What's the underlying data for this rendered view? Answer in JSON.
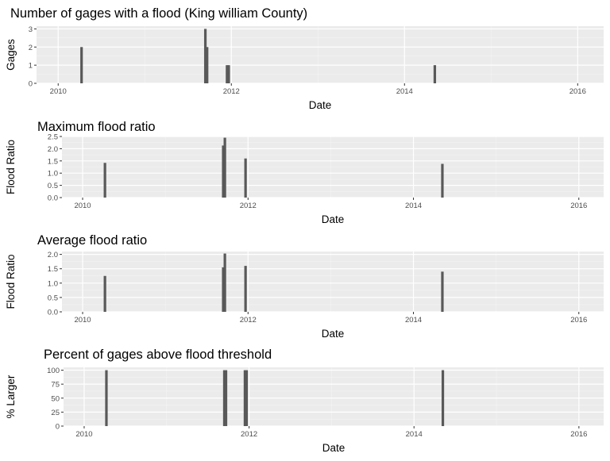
{
  "chart_data": [
    {
      "type": "bar",
      "title": "Number of gages with a flood (King william County)",
      "xlabel": "Date",
      "ylabel": "Gages",
      "xlim": [
        2009.75,
        2016.3
      ],
      "ylim": [
        0,
        3.15
      ],
      "x_ticks": [
        2010,
        2012,
        2014,
        2016
      ],
      "x_tick_labels": [
        "2010",
        "2012",
        "2014",
        "2016"
      ],
      "y_ticks": [
        0,
        1,
        2,
        3
      ],
      "y_tick_labels": [
        "0",
        "1",
        "2",
        "3"
      ],
      "grid": true,
      "bar_color": "#595959",
      "panel_color": "#ebebeb",
      "points": [
        {
          "x": 2010.27,
          "y": 2
        },
        {
          "x": 2011.7,
          "y": 3
        },
        {
          "x": 2011.72,
          "y": 2
        },
        {
          "x": 2011.95,
          "y": 1
        },
        {
          "x": 2011.97,
          "y": 1
        },
        {
          "x": 2014.35,
          "y": 1
        }
      ]
    },
    {
      "type": "bar",
      "title": "Maximum flood ratio",
      "xlabel": "Date",
      "ylabel": "Flood Ratio",
      "xlim": [
        2009.75,
        2016.3
      ],
      "ylim": [
        0,
        2.5
      ],
      "x_ticks": [
        2010,
        2012,
        2014,
        2016
      ],
      "x_tick_labels": [
        "2010",
        "2012",
        "2014",
        "2016"
      ],
      "y_ticks": [
        0,
        0.5,
        1,
        1.5,
        2,
        2.5
      ],
      "y_tick_labels": [
        "0.0",
        "0.5",
        "1.0",
        "1.5",
        "2.0",
        "2.5"
      ],
      "grid": true,
      "bar_color": "#595959",
      "panel_color": "#ebebeb",
      "points": [
        {
          "x": 2010.27,
          "y": 1.42
        },
        {
          "x": 2011.7,
          "y": 2.13
        },
        {
          "x": 2011.72,
          "y": 2.45
        },
        {
          "x": 2011.97,
          "y": 1.6
        },
        {
          "x": 2014.35,
          "y": 1.38
        }
      ]
    },
    {
      "type": "bar",
      "title": "Average flood ratio",
      "xlabel": "Date",
      "ylabel": "Flood Ratio",
      "xlim": [
        2009.75,
        2016.3
      ],
      "ylim": [
        0,
        2.1
      ],
      "x_ticks": [
        2010,
        2012,
        2014,
        2016
      ],
      "x_tick_labels": [
        "2010",
        "2012",
        "2014",
        "2016"
      ],
      "y_ticks": [
        0,
        0.5,
        1,
        1.5,
        2
      ],
      "y_tick_labels": [
        "0.0",
        "0.5",
        "1.0",
        "1.5",
        "2.0"
      ],
      "grid": true,
      "bar_color": "#595959",
      "panel_color": "#ebebeb",
      "points": [
        {
          "x": 2010.27,
          "y": 1.25
        },
        {
          "x": 2011.7,
          "y": 1.55
        },
        {
          "x": 2011.72,
          "y": 2.03
        },
        {
          "x": 2011.97,
          "y": 1.6
        },
        {
          "x": 2014.35,
          "y": 1.4
        }
      ]
    },
    {
      "type": "bar",
      "title": "Percent of gages above flood threshold",
      "xlabel": "Date",
      "ylabel": "% Larger",
      "xlim": [
        2009.75,
        2016.3
      ],
      "ylim": [
        0,
        105
      ],
      "x_ticks": [
        2010,
        2012,
        2014,
        2016
      ],
      "x_tick_labels": [
        "2010",
        "2012",
        "2014",
        "2016"
      ],
      "y_ticks": [
        0,
        25,
        50,
        75,
        100
      ],
      "y_tick_labels": [
        "0",
        "25",
        "50",
        "75",
        "100"
      ],
      "grid": true,
      "bar_color": "#595959",
      "panel_color": "#ebebeb",
      "points": [
        {
          "x": 2010.27,
          "y": 100
        },
        {
          "x": 2011.7,
          "y": 100
        },
        {
          "x": 2011.72,
          "y": 100
        },
        {
          "x": 2011.95,
          "y": 100
        },
        {
          "x": 2011.97,
          "y": 100
        },
        {
          "x": 2014.35,
          "y": 100
        }
      ]
    }
  ]
}
